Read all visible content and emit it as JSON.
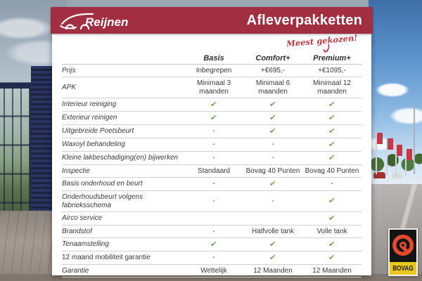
{
  "brand": {
    "logo_text": "Reijnen",
    "header_title": "Afleverpakketten",
    "accent_color": "#a22e42",
    "check_color": "#6fa24f",
    "annotation_color": "#c23745"
  },
  "annotation": {
    "text": "Meest gekozen!",
    "target_column": "Premium+"
  },
  "table": {
    "columns": [
      "Basis",
      "Comfort+",
      "Premium+"
    ],
    "rows": [
      {
        "label": "Prijs",
        "values": [
          "Inbegrepen",
          "+€695,-",
          "+€1095,-"
        ]
      },
      {
        "label": "APK",
        "values": [
          "Minimaal 3 maanden",
          "Minimaal 6 maanden",
          "Minimaal 12 maanden"
        ]
      },
      {
        "label": "Interieur reiniging",
        "values": [
          "check",
          "check",
          "check"
        ]
      },
      {
        "label": "Exterieur reinigen",
        "values": [
          "check",
          "check",
          "check"
        ]
      },
      {
        "label": "Uitgebreide Poetsbeurt",
        "values": [
          "-",
          "check",
          "check"
        ]
      },
      {
        "label": "Waxoyl behandeling",
        "values": [
          "-",
          "-",
          "check"
        ]
      },
      {
        "label": "Kleine lakbeschadiging(en) bijwerken",
        "values": [
          "-",
          "-",
          "check"
        ]
      },
      {
        "label": "Inspectie",
        "values": [
          "Standaard",
          "Bovag 40 Punten",
          "Bovag 40 Punten"
        ]
      },
      {
        "label": "Basis onderhoud en beurt",
        "values": [
          "-",
          "check",
          "-"
        ]
      },
      {
        "label": "Onderhoudsbeurt volgens fabrieksschema",
        "values": [
          "-",
          "-",
          "check"
        ]
      },
      {
        "label": "Airco service",
        "values": [
          "",
          "",
          "check"
        ]
      },
      {
        "label": "Brandstof",
        "values": [
          "-",
          "Halfvolle tank",
          "Volle tank"
        ]
      },
      {
        "label": "Tenaamstelling",
        "values": [
          "check",
          "check",
          "check"
        ]
      },
      {
        "label": "12 maand mobiliteit garantie",
        "values": [
          "-",
          "check",
          "check"
        ],
        "label_style": "upright"
      },
      {
        "label": "Garantie",
        "values": [
          "Wettelijk",
          "12 Maanden",
          "12 Maanden"
        ]
      }
    ]
  },
  "badge": {
    "text": "BOVAG"
  }
}
